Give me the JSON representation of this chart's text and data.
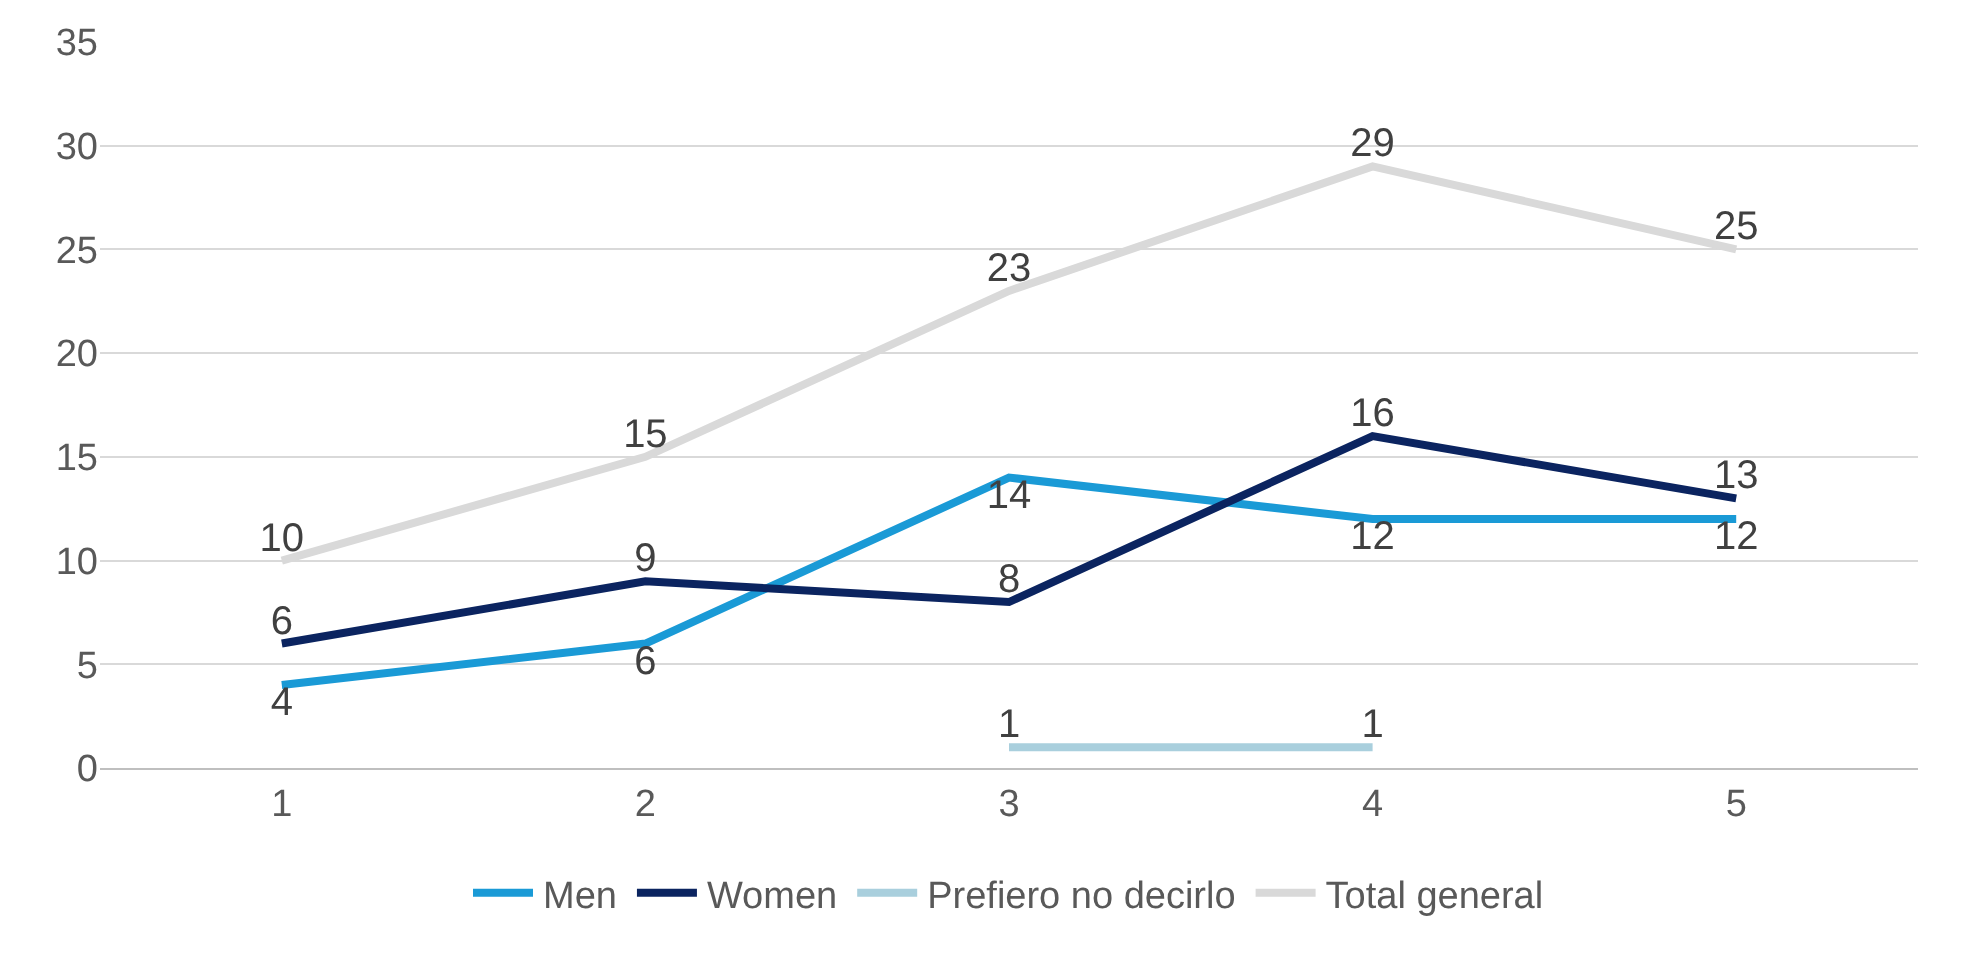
{
  "chart_data": {
    "type": "line",
    "categories": [
      "1",
      "2",
      "3",
      "4",
      "5"
    ],
    "series": [
      {
        "name": "Men",
        "color": "#1a9ad6",
        "values": [
          4,
          6,
          14,
          12,
          12
        ]
      },
      {
        "name": "Women",
        "color": "#0b2460",
        "values": [
          6,
          9,
          8,
          16,
          13
        ]
      },
      {
        "name": "Prefiero no decirlo",
        "color": "#a9cfdd",
        "values": [
          null,
          null,
          1,
          1,
          null
        ]
      },
      {
        "name": "Total general",
        "color": "#d9d9d9",
        "values": [
          10,
          15,
          23,
          29,
          25
        ]
      }
    ],
    "ylim": [
      0,
      35
    ],
    "yticks": [
      0,
      5,
      10,
      15,
      20,
      25,
      30,
      35
    ],
    "grid": "y",
    "legend": "bottom",
    "data_labels": true,
    "marker": "none",
    "line_style": "solid"
  }
}
